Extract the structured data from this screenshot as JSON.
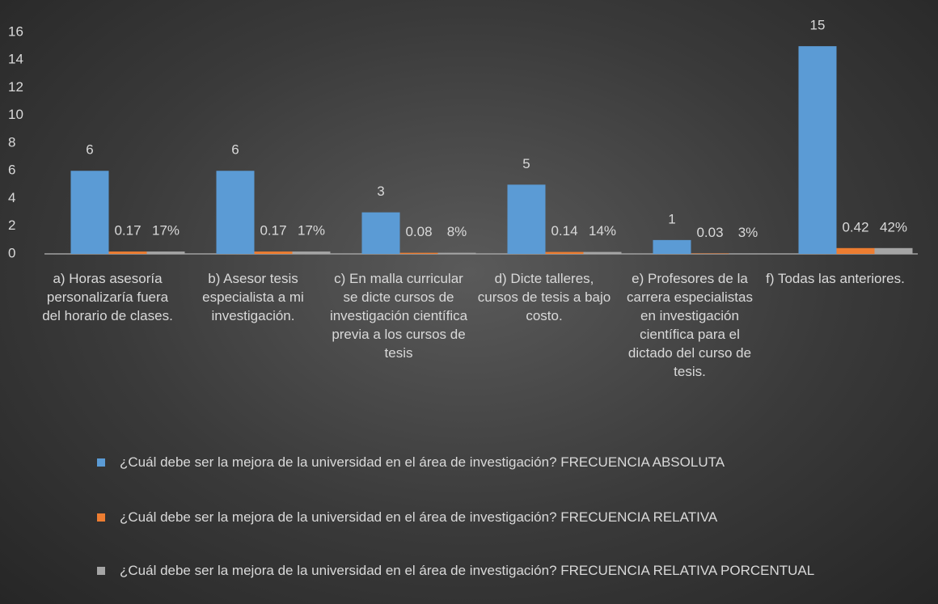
{
  "chart_data": {
    "type": "bar",
    "categories": [
      "a) Horas asesoría personalizaría fuera del horario de clases.",
      "b) Asesor tesis especialista a mi investigación.",
      "c) En malla curricular se dicte cursos de investigación científica previa a los cursos de tesis",
      "d) Dicte talleres, cursos de tesis a bajo costo.",
      "e) Profesores de la carrera especialistas en investigación científica para el dictado del curso de tesis.",
      "f) Todas las anteriores."
    ],
    "series": [
      {
        "name": "¿Cuál debe ser la mejora de la universidad en el área de investigación? FRECUENCIA ABSOLUTA",
        "color": "#5b9bd5",
        "values": [
          6,
          6,
          3,
          5,
          1,
          15
        ]
      },
      {
        "name": "¿Cuál debe ser la mejora de la universidad en el área de investigación? FRECUENCIA RELATIVA",
        "color": "#ed7d31",
        "values": [
          0.17,
          0.17,
          0.08,
          0.14,
          0.03,
          0.42
        ]
      },
      {
        "name": "¿Cuál debe ser la mejora de la universidad en el área de investigación? FRECUENCIA RELATIVA PORCENTUAL",
        "color": "#a5a5a5",
        "values": [
          0.17,
          0.17,
          0.08,
          0.14,
          0.03,
          0.42
        ],
        "value_labels": [
          "17%",
          "17%",
          "8%",
          "14%",
          "3%",
          "42%"
        ]
      }
    ],
    "ylim": [
      0,
      16
    ],
    "yticks": [
      0,
      2,
      4,
      6,
      8,
      10,
      12,
      14,
      16
    ],
    "grid": false,
    "legend": "bottom"
  }
}
